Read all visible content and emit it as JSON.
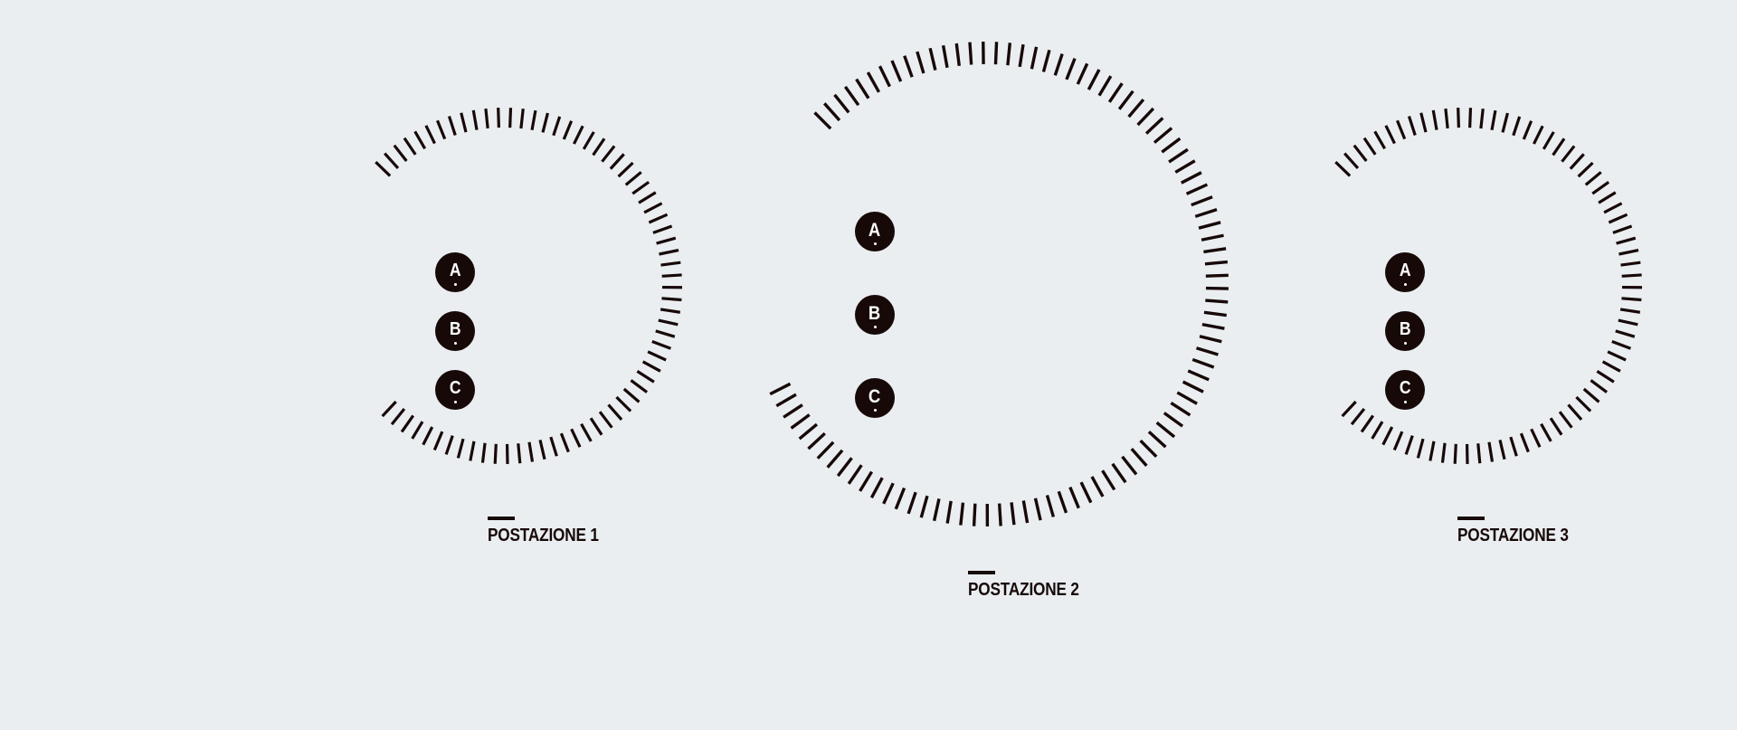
{
  "colors": {
    "background": "#eaeef1",
    "ink": "#170908",
    "button_text": "#ffffff"
  },
  "stations": [
    {
      "label": "POSTAZIONE 1",
      "buttons": [
        {
          "key": "a",
          "label": "A"
        },
        {
          "key": "b",
          "label": "B"
        },
        {
          "key": "c",
          "label": "C"
        }
      ]
    },
    {
      "label": "POSTAZIONE 2",
      "buttons": [
        {
          "key": "a",
          "label": "A"
        },
        {
          "key": "b",
          "label": "B"
        },
        {
          "key": "c",
          "label": "C"
        }
      ]
    },
    {
      "label": "POSTAZIONE 3",
      "buttons": [
        {
          "key": "a",
          "label": "A"
        },
        {
          "key": "b",
          "label": "B"
        },
        {
          "key": "c",
          "label": "C"
        }
      ]
    }
  ]
}
